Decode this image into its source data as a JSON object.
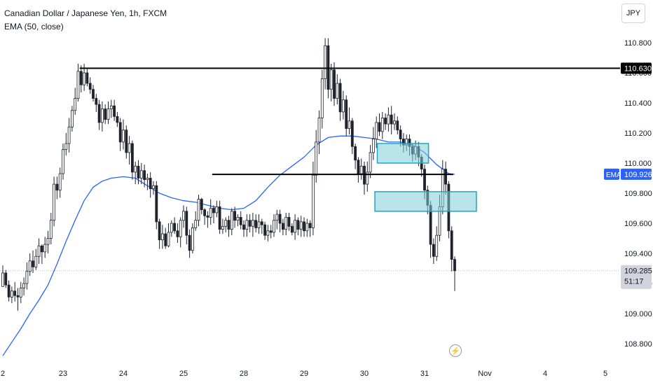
{
  "header": {
    "symbol_line": "Canadian Dollar / Japanese Yen, 1h, FXCM",
    "indicator_line": "EMA (50, close)"
  },
  "currency_button": "JPY",
  "icons": {
    "bolt": "lightning-bolt-icon"
  },
  "colors": {
    "up": "#089981",
    "down": "#f23645",
    "candle": "#1e222d",
    "ema": "#2962ff",
    "zone_fill": "#7fcfd9",
    "zone_border": "#1aa7c7",
    "level": "#000000",
    "grid": "#ececec"
  },
  "chart_data": {
    "type": "candlestick",
    "interval": "1h",
    "y_axis": {
      "side": "right",
      "min": 108.7,
      "max": 110.92,
      "ticks": [
        108.8,
        109.0,
        109.2,
        109.4,
        109.6,
        109.8,
        110.0,
        110.2,
        110.4,
        110.6,
        110.8
      ],
      "tick_labels": [
        "108.800",
        "109.000",
        "109.200",
        "109.400",
        "109.600",
        "109.800",
        "110.000",
        "110.200",
        "110.400",
        "110.600",
        "110.800"
      ]
    },
    "x_axis": {
      "labels": [
        "2",
        "23",
        "24",
        "25",
        "28",
        "29",
        "30",
        "31",
        "Nov",
        "4",
        "5"
      ],
      "label_bars": [
        0,
        20,
        40,
        60,
        80,
        100,
        120,
        140,
        160,
        180,
        200
      ]
    },
    "last_bar": 150.2,
    "candles": [
      [
        0,
        109.18,
        109.27,
        109.18,
        109.32
      ],
      [
        1,
        109.27,
        109.19,
        109.17,
        109.29
      ],
      [
        2,
        109.19,
        109.11,
        109.08,
        109.22
      ],
      [
        3,
        109.11,
        109.15,
        109.07,
        109.18
      ],
      [
        4,
        109.15,
        109.12,
        109.08,
        109.21
      ],
      [
        5,
        109.12,
        109.11,
        109.02,
        109.17
      ],
      [
        6,
        109.11,
        109.17,
        109.07,
        109.21
      ],
      [
        7,
        109.17,
        109.2,
        109.12,
        109.24
      ],
      [
        8,
        109.2,
        109.28,
        109.16,
        109.34
      ],
      [
        9,
        109.28,
        109.35,
        109.25,
        109.4
      ],
      [
        10,
        109.35,
        109.31,
        109.27,
        109.42
      ],
      [
        11,
        109.31,
        109.38,
        109.29,
        109.43
      ],
      [
        12,
        109.38,
        109.45,
        109.33,
        109.5
      ],
      [
        13,
        109.45,
        109.41,
        109.33,
        109.46
      ],
      [
        14,
        109.41,
        109.46,
        109.37,
        109.51
      ],
      [
        15,
        109.46,
        109.5,
        109.4,
        109.55
      ],
      [
        16,
        109.5,
        109.62,
        109.46,
        109.67
      ],
      [
        17,
        109.62,
        109.86,
        109.58,
        109.91
      ],
      [
        18,
        109.86,
        109.82,
        109.76,
        109.91
      ],
      [
        19,
        109.82,
        109.93,
        109.77,
        109.97
      ],
      [
        20,
        109.93,
        110.09,
        109.89,
        110.13
      ],
      [
        21,
        110.09,
        110.13,
        110.05,
        110.2
      ],
      [
        22,
        110.13,
        110.24,
        110.07,
        110.3
      ],
      [
        23,
        110.24,
        110.35,
        110.21,
        110.38
      ],
      [
        24,
        110.35,
        110.43,
        110.32,
        110.5
      ],
      [
        25,
        110.43,
        110.61,
        110.41,
        110.66
      ],
      [
        26,
        110.61,
        110.52,
        110.47,
        110.65
      ],
      [
        27,
        110.52,
        110.6,
        110.48,
        110.66
      ],
      [
        28,
        110.6,
        110.53,
        110.51,
        110.63
      ],
      [
        29,
        110.53,
        110.49,
        110.46,
        110.57
      ],
      [
        30,
        110.49,
        110.43,
        110.41,
        110.52
      ],
      [
        31,
        110.43,
        110.39,
        110.34,
        110.46
      ],
      [
        32,
        110.39,
        110.27,
        110.22,
        110.42
      ],
      [
        33,
        110.27,
        110.36,
        110.21,
        110.41
      ],
      [
        34,
        110.36,
        110.29,
        110.26,
        110.39
      ],
      [
        35,
        110.29,
        110.36,
        110.26,
        110.41
      ],
      [
        36,
        110.36,
        110.38,
        110.3,
        110.42
      ],
      [
        37,
        110.38,
        110.31,
        110.28,
        110.42
      ],
      [
        38,
        110.31,
        110.27,
        110.24,
        110.34
      ],
      [
        39,
        110.27,
        110.14,
        110.08,
        110.3
      ],
      [
        40,
        110.14,
        110.22,
        110.09,
        110.29
      ],
      [
        41,
        110.22,
        110.07,
        110.03,
        110.25
      ],
      [
        42,
        110.07,
        110.13,
        109.99,
        110.18
      ],
      [
        43,
        110.13,
        109.94,
        109.89,
        110.15
      ],
      [
        44,
        109.94,
        109.98,
        109.86,
        110.01
      ],
      [
        45,
        109.98,
        109.9,
        109.86,
        110.02
      ],
      [
        46,
        109.9,
        109.95,
        109.86,
        110.0
      ],
      [
        47,
        109.95,
        109.89,
        109.84,
        109.99
      ],
      [
        48,
        109.89,
        109.9,
        109.82,
        109.93
      ],
      [
        49,
        109.9,
        109.83,
        109.77,
        109.94
      ],
      [
        50,
        109.83,
        109.85,
        109.79,
        109.88
      ],
      [
        51,
        109.85,
        109.61,
        109.56,
        109.88
      ],
      [
        52,
        109.61,
        109.49,
        109.43,
        109.63
      ],
      [
        53,
        109.49,
        109.53,
        109.43,
        109.59
      ],
      [
        54,
        109.53,
        109.45,
        109.43,
        109.57
      ],
      [
        55,
        109.45,
        109.54,
        109.44,
        109.6
      ],
      [
        56,
        109.54,
        109.6,
        109.51,
        109.62
      ],
      [
        57,
        109.6,
        109.55,
        109.53,
        109.64
      ],
      [
        58,
        109.55,
        109.51,
        109.47,
        109.6
      ],
      [
        59,
        109.51,
        109.62,
        109.44,
        109.64
      ],
      [
        60,
        109.62,
        109.68,
        109.57,
        109.72
      ],
      [
        61,
        109.68,
        109.52,
        109.46,
        109.71
      ],
      [
        62,
        109.52,
        109.42,
        109.37,
        109.56
      ],
      [
        63,
        109.42,
        109.57,
        109.4,
        109.6
      ],
      [
        64,
        109.57,
        109.62,
        109.55,
        109.68
      ],
      [
        65,
        109.62,
        109.76,
        109.58,
        109.79
      ],
      [
        66,
        109.76,
        109.69,
        109.66,
        109.77
      ],
      [
        67,
        109.69,
        109.65,
        109.59,
        109.7
      ],
      [
        68,
        109.65,
        109.64,
        109.57,
        109.68
      ],
      [
        69,
        109.64,
        109.7,
        109.59,
        109.76
      ],
      [
        70,
        109.7,
        109.67,
        109.6,
        109.72
      ],
      [
        71,
        109.67,
        109.71,
        109.64,
        109.75
      ],
      [
        72,
        109.71,
        109.56,
        109.53,
        109.75
      ],
      [
        73,
        109.56,
        109.58,
        109.53,
        109.63
      ],
      [
        74,
        109.58,
        109.62,
        109.54,
        109.64
      ],
      [
        75,
        109.62,
        109.56,
        109.51,
        109.65
      ],
      [
        76,
        109.56,
        109.68,
        109.52,
        109.7
      ],
      [
        77,
        109.68,
        109.62,
        109.57,
        109.71
      ],
      [
        78,
        109.62,
        109.64,
        109.58,
        109.66
      ],
      [
        79,
        109.64,
        109.59,
        109.56,
        109.68
      ],
      [
        80,
        109.59,
        109.56,
        109.51,
        109.62
      ],
      [
        81,
        109.56,
        109.62,
        109.51,
        109.66
      ],
      [
        82,
        109.62,
        109.58,
        109.54,
        109.66
      ],
      [
        83,
        109.58,
        109.62,
        109.51,
        109.67
      ],
      [
        84,
        109.62,
        109.57,
        109.54,
        109.66
      ],
      [
        85,
        109.57,
        109.61,
        109.53,
        109.66
      ],
      [
        86,
        109.61,
        109.59,
        109.53,
        109.63
      ],
      [
        87,
        109.59,
        109.52,
        109.49,
        109.61
      ],
      [
        88,
        109.52,
        109.55,
        109.48,
        109.59
      ],
      [
        89,
        109.55,
        109.54,
        109.5,
        109.59
      ],
      [
        90,
        109.54,
        109.62,
        109.51,
        109.66
      ],
      [
        91,
        109.62,
        109.66,
        109.56,
        109.69
      ],
      [
        92,
        109.66,
        109.6,
        109.54,
        109.69
      ],
      [
        93,
        109.6,
        109.56,
        109.52,
        109.63
      ],
      [
        94,
        109.56,
        109.64,
        109.52,
        109.67
      ],
      [
        95,
        109.64,
        109.58,
        109.55,
        109.67
      ],
      [
        96,
        109.58,
        109.54,
        109.52,
        109.6
      ],
      [
        97,
        109.54,
        109.62,
        109.49,
        109.66
      ],
      [
        98,
        109.62,
        109.56,
        109.52,
        109.64
      ],
      [
        99,
        109.56,
        109.61,
        109.51,
        109.65
      ],
      [
        100,
        109.61,
        109.55,
        109.51,
        109.64
      ],
      [
        101,
        109.55,
        109.6,
        109.51,
        109.63
      ],
      [
        102,
        109.6,
        109.57,
        109.51,
        109.62
      ],
      [
        103,
        109.57,
        109.92,
        109.52,
        110.01
      ],
      [
        104,
        109.92,
        110.14,
        109.87,
        110.22
      ],
      [
        105,
        110.14,
        110.3,
        110.06,
        110.35
      ],
      [
        106,
        110.3,
        110.56,
        110.23,
        110.62
      ],
      [
        107,
        110.56,
        110.78,
        110.49,
        110.83
      ],
      [
        108,
        110.78,
        110.49,
        110.43,
        110.83
      ],
      [
        109,
        110.49,
        110.62,
        110.41,
        110.66
      ],
      [
        110,
        110.62,
        110.43,
        110.38,
        110.67
      ],
      [
        111,
        110.43,
        110.53,
        110.39,
        110.59
      ],
      [
        112,
        110.53,
        110.34,
        110.28,
        110.56
      ],
      [
        113,
        110.34,
        110.42,
        110.29,
        110.48
      ],
      [
        114,
        110.42,
        110.23,
        110.18,
        110.45
      ],
      [
        115,
        110.23,
        110.28,
        110.19,
        110.37
      ],
      [
        116,
        110.28,
        110.11,
        110.06,
        110.3
      ],
      [
        117,
        110.11,
        110.02,
        109.96,
        110.13
      ],
      [
        118,
        110.02,
        109.93,
        109.87,
        110.04
      ],
      [
        119,
        109.93,
        109.98,
        109.89,
        110.03
      ],
      [
        120,
        109.98,
        109.86,
        109.79,
        110.01
      ],
      [
        121,
        109.86,
        109.94,
        109.81,
        110.01
      ],
      [
        122,
        109.94,
        110.07,
        109.9,
        110.12
      ],
      [
        123,
        110.07,
        110.16,
        110.02,
        110.24
      ],
      [
        124,
        110.16,
        110.27,
        110.1,
        110.31
      ],
      [
        125,
        110.27,
        110.21,
        110.18,
        110.33
      ],
      [
        126,
        110.21,
        110.3,
        110.16,
        110.34
      ],
      [
        127,
        110.3,
        110.26,
        110.22,
        110.33
      ],
      [
        128,
        110.26,
        110.32,
        110.21,
        110.37
      ],
      [
        129,
        110.32,
        110.26,
        110.19,
        110.38
      ],
      [
        130,
        110.26,
        110.28,
        110.22,
        110.33
      ],
      [
        131,
        110.28,
        110.22,
        110.19,
        110.31
      ],
      [
        132,
        110.22,
        110.16,
        110.11,
        110.25
      ],
      [
        133,
        110.16,
        110.12,
        110.07,
        110.2
      ],
      [
        134,
        110.12,
        110.16,
        110.08,
        110.19
      ],
      [
        135,
        110.16,
        110.11,
        110.05,
        110.19
      ],
      [
        136,
        110.11,
        110.06,
        110.01,
        110.13
      ],
      [
        137,
        110.06,
        110.11,
        110.02,
        110.15
      ],
      [
        138,
        110.11,
        110.04,
        109.98,
        110.14
      ],
      [
        139,
        110.04,
        109.96,
        109.91,
        110.06
      ],
      [
        140,
        109.96,
        109.82,
        109.76,
        109.99
      ],
      [
        141,
        109.82,
        109.72,
        109.66,
        109.85
      ],
      [
        142,
        109.72,
        109.46,
        109.37,
        109.75
      ],
      [
        143,
        109.46,
        109.38,
        109.33,
        109.5
      ],
      [
        144,
        109.38,
        109.52,
        109.35,
        109.58
      ],
      [
        145,
        109.52,
        109.71,
        109.48,
        109.79
      ],
      [
        146,
        109.71,
        109.96,
        109.66,
        110.02
      ],
      [
        147,
        109.96,
        109.86,
        109.79,
        110.01
      ],
      [
        148,
        109.86,
        109.55,
        109.5,
        109.88
      ],
      [
        149,
        109.55,
        109.36,
        109.28,
        109.58
      ],
      [
        150,
        109.36,
        109.285,
        109.15,
        109.38
      ]
    ],
    "ema": {
      "label": "EMA",
      "period": 50,
      "source": "close",
      "last_value": 109.926,
      "points": [
        [
          0,
          108.72
        ],
        [
          3,
          108.81
        ],
        [
          6,
          108.9
        ],
        [
          9,
          109.0
        ],
        [
          12,
          109.09
        ],
        [
          15,
          109.19
        ],
        [
          18,
          109.33
        ],
        [
          21,
          109.48
        ],
        [
          24,
          109.62
        ],
        [
          27,
          109.75
        ],
        [
          30,
          109.84
        ],
        [
          33,
          109.88
        ],
        [
          36,
          109.9
        ],
        [
          40,
          109.91
        ],
        [
          44,
          109.9
        ],
        [
          48,
          109.85
        ],
        [
          52,
          109.8
        ],
        [
          56,
          109.77
        ],
        [
          60,
          109.75
        ],
        [
          64,
          109.74
        ],
        [
          68,
          109.72
        ],
        [
          72,
          109.7
        ],
        [
          76,
          109.69
        ],
        [
          80,
          109.7
        ],
        [
          84,
          109.75
        ],
        [
          88,
          109.84
        ],
        [
          92,
          109.92
        ],
        [
          96,
          109.98
        ],
        [
          100,
          110.04
        ],
        [
          104,
          110.12
        ],
        [
          108,
          110.17
        ],
        [
          112,
          110.18
        ],
        [
          116,
          110.18
        ],
        [
          120,
          110.17
        ],
        [
          124,
          110.16
        ],
        [
          128,
          110.14
        ],
        [
          132,
          110.14
        ],
        [
          136,
          110.12
        ],
        [
          140,
          110.07
        ],
        [
          144,
          109.99
        ],
        [
          148,
          109.93
        ],
        [
          150,
          109.926
        ]
      ]
    },
    "horizontal_levels": [
      {
        "name": "resistance",
        "price": 110.63,
        "from_bar": 25.5,
        "to_bar": 206,
        "label": "110.630"
      },
      {
        "name": "support",
        "price": 109.925,
        "from_bar": 69.5,
        "to_bar": 149.5
      }
    ],
    "zones": [
      {
        "name": "supply-zone",
        "price_top": 110.13,
        "price_bottom": 110.0,
        "from_bar": 124.3,
        "to_bar": 141.3
      },
      {
        "name": "demand-zone",
        "price_top": 109.81,
        "price_bottom": 109.68,
        "from_bar": 123.5,
        "to_bar": 157.2
      }
    ],
    "current_price": {
      "value": 109.285,
      "label": "109.285",
      "countdown": "51:17"
    },
    "ema_label": {
      "label": "EMA",
      "value": "109.926"
    }
  }
}
